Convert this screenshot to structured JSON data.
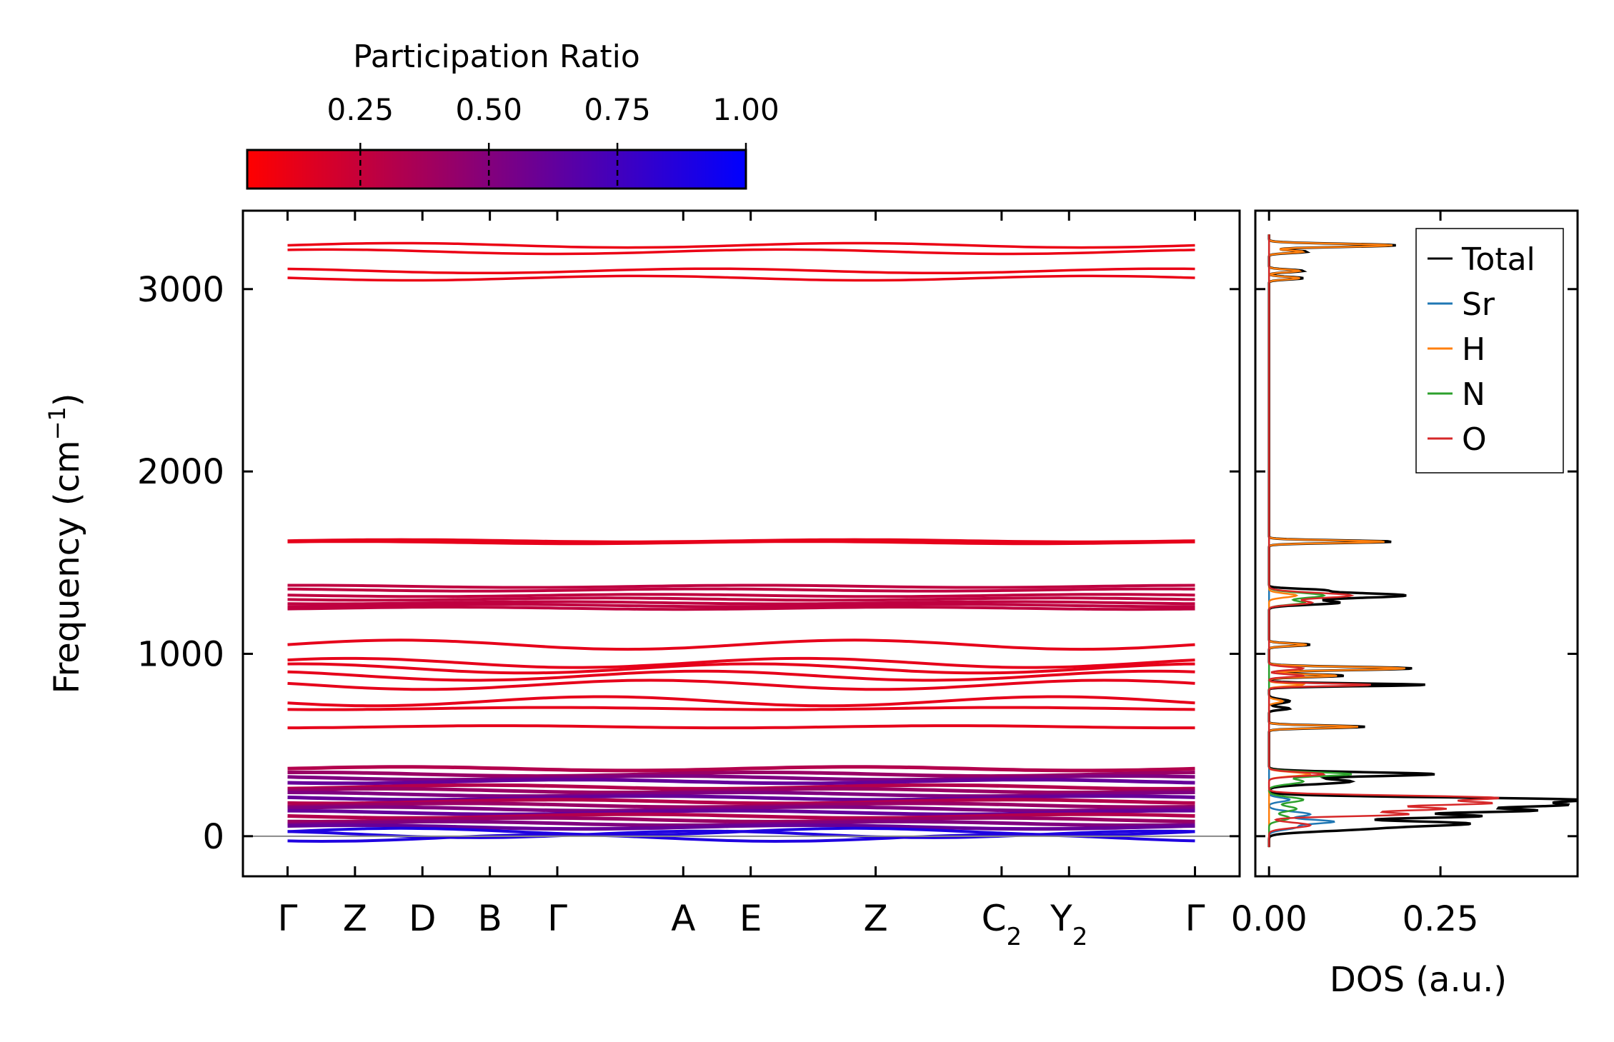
{
  "colorbar": {
    "title": "Participation Ratio",
    "ticks": [
      0.25,
      0.5,
      0.75,
      1.0
    ],
    "tick_labels": [
      "0.25",
      "0.50",
      "0.75",
      "1.00"
    ],
    "range": [
      0.03,
      1.0
    ],
    "color_low": "#ff0000",
    "color_high": "#0000ff"
  },
  "chart_data": [
    {
      "type": "line",
      "name": "phonon-band-structure",
      "ylabel_main": "Frequency (cm",
      "ylabel_sup": "−1",
      "ylabel_end": ")",
      "ylim": [
        -220,
        3430
      ],
      "yticks": [
        0,
        1000,
        2000,
        3000
      ],
      "ytick_labels": [
        "0",
        "1000",
        "2000",
        "3000"
      ],
      "x_path": [
        {
          "main": "Γ",
          "sub": "",
          "x": 0.0
        },
        {
          "main": "Z",
          "sub": "",
          "x": 0.068
        },
        {
          "main": "D",
          "sub": "",
          "x": 0.136
        },
        {
          "main": "B",
          "sub": "",
          "x": 0.204
        },
        {
          "main": "Γ",
          "sub": "",
          "x": 0.272
        },
        {
          "main": "A",
          "sub": "",
          "x": 0.399
        },
        {
          "main": "E",
          "sub": "",
          "x": 0.467
        },
        {
          "main": "Z",
          "sub": "",
          "x": 0.593
        },
        {
          "main": "C",
          "sub": "2",
          "x": 0.72
        },
        {
          "main": "Y",
          "sub": "2",
          "x": 0.788
        },
        {
          "main": "Γ",
          "sub": "",
          "x": 0.915
        }
      ],
      "xlim": [
        -0.045,
        0.96
      ],
      "zero_line": 0,
      "bands_high": [
        3240,
        3205,
        3100,
        3060
      ],
      "bands_mid": [
        1620,
        1610,
        1370,
        1350,
        1320,
        1300,
        1280,
        1265,
        1250,
        1050,
        950,
        920,
        880,
        830,
        740,
        700,
        600
      ],
      "bands_low": [
        370,
        340,
        320,
        300,
        270,
        250,
        230,
        210,
        190,
        170,
        150,
        130,
        110,
        90,
        70,
        50
      ],
      "bands_acoustic": [
        25,
        10,
        -10
      ]
    },
    {
      "type": "line",
      "name": "density-of-states",
      "xlabel": "DOS (a.u.)",
      "xlim": [
        -0.02,
        0.45
      ],
      "xticks": [
        0.0,
        0.25
      ],
      "xtick_labels": [
        "0.00",
        "0.25"
      ],
      "ylim": [
        -220,
        3430
      ],
      "legend_position": "top-right",
      "series": [
        {
          "name": "Total",
          "color": "#000000",
          "peaks": [
            [
              3240,
              0.185,
              12
            ],
            [
              3205,
              0.055,
              10
            ],
            [
              3100,
              0.05,
              10
            ],
            [
              3060,
              0.05,
              10
            ],
            [
              1615,
              0.18,
              10
            ],
            [
              1320,
              0.2,
              20
            ],
            [
              1280,
              0.1,
              15
            ],
            [
              1350,
              0.06,
              10
            ],
            [
              1050,
              0.06,
              10
            ],
            [
              920,
              0.21,
              12
            ],
            [
              880,
              0.11,
              10
            ],
            [
              830,
              0.23,
              10
            ],
            [
              740,
              0.03,
              15
            ],
            [
              700,
              0.03,
              10
            ],
            [
              600,
              0.14,
              10
            ],
            [
              340,
              0.24,
              15
            ],
            [
              300,
              0.12,
              20
            ],
            [
              200,
              0.43,
              18
            ],
            [
              170,
              0.4,
              18
            ],
            [
              140,
              0.36,
              15
            ],
            [
              110,
              0.3,
              15
            ],
            [
              70,
              0.28,
              20
            ],
            [
              40,
              0.12,
              20
            ]
          ]
        },
        {
          "name": "Sr",
          "color": "#1f77b4",
          "peaks": [
            [
              120,
              0.06,
              20
            ],
            [
              80,
              0.09,
              15
            ],
            [
              50,
              0.04,
              20
            ],
            [
              200,
              0.03,
              15
            ]
          ]
        },
        {
          "name": "H",
          "color": "#ff7f0e",
          "peaks": [
            [
              3240,
              0.18,
              12
            ],
            [
              3205,
              0.05,
              10
            ],
            [
              3100,
              0.045,
              10
            ],
            [
              3060,
              0.045,
              10
            ],
            [
              1615,
              0.17,
              10
            ],
            [
              1320,
              0.04,
              15
            ],
            [
              1050,
              0.055,
              10
            ],
            [
              920,
              0.2,
              12
            ],
            [
              880,
              0.1,
              10
            ],
            [
              830,
              0.05,
              10
            ],
            [
              740,
              0.02,
              12
            ],
            [
              600,
              0.13,
              10
            ],
            [
              340,
              0.06,
              15
            ]
          ]
        },
        {
          "name": "N",
          "color": "#2ca02c",
          "peaks": [
            [
              1320,
              0.08,
              20
            ],
            [
              1280,
              0.05,
              15
            ],
            [
              340,
              0.12,
              15
            ],
            [
              300,
              0.05,
              20
            ],
            [
              200,
              0.05,
              20
            ],
            [
              150,
              0.04,
              20
            ],
            [
              100,
              0.03,
              20
            ]
          ]
        },
        {
          "name": "O",
          "color": "#d62728",
          "peaks": [
            [
              1320,
              0.12,
              20
            ],
            [
              1280,
              0.06,
              15
            ],
            [
              830,
              0.15,
              10
            ],
            [
              880,
              0.05,
              10
            ],
            [
              920,
              0.05,
              12
            ],
            [
              340,
              0.08,
              15
            ],
            [
              210,
              0.33,
              18
            ],
            [
              180,
              0.3,
              15
            ],
            [
              150,
              0.25,
              15
            ],
            [
              120,
              0.2,
              15
            ],
            [
              60,
              0.06,
              20
            ]
          ]
        }
      ]
    }
  ]
}
